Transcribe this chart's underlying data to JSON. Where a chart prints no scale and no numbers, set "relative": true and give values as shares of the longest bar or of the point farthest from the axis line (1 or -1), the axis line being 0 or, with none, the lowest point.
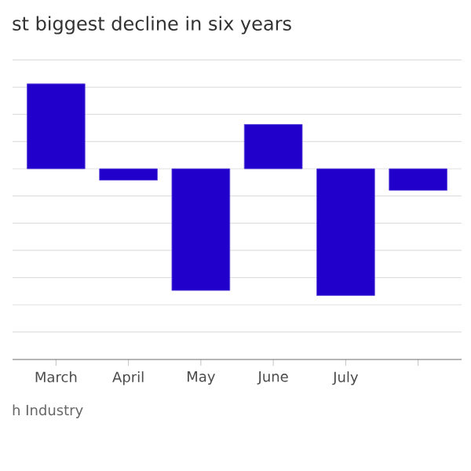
{
  "chart_data": {
    "type": "bar",
    "title": "st biggest decline in six years",
    "categories": [
      "March",
      "April",
      "May",
      "June",
      "July",
      null
    ],
    "values": [
      0.67,
      -0.09,
      -0.96,
      0.35,
      -1,
      -0.17
    ],
    "color": "#2200cc",
    "relative": true,
    "grid": "y",
    "annotations": [
      "h Industry"
    ]
  }
}
